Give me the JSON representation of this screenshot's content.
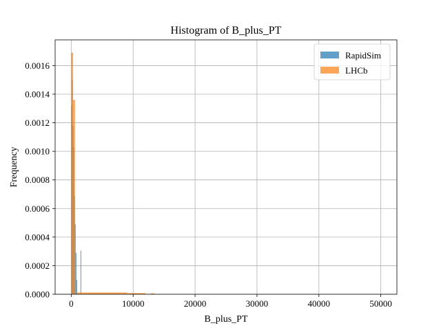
{
  "chart_data": {
    "type": "bar",
    "title": "Histogram of B_plus_PT",
    "xlabel": "B_plus_PT",
    "ylabel": "Frequency",
    "xlim": [
      -2600,
      52600
    ],
    "ylim": [
      0,
      0.00178
    ],
    "xticks": [
      0,
      10000,
      20000,
      30000,
      40000,
      50000
    ],
    "xtick_labels": [
      "0",
      "10000",
      "20000",
      "30000",
      "40000",
      "50000"
    ],
    "yticks": [
      0,
      0.0002,
      0.0004,
      0.0006,
      0.0008,
      0.001,
      0.0012,
      0.0014,
      0.0016
    ],
    "ytick_labels": [
      "0.0000",
      "0.0002",
      "0.0004",
      "0.0006",
      "0.0008",
      "0.0010",
      "0.0012",
      "0.0014",
      "0.0016"
    ],
    "grid": true,
    "legend_position": "top-right",
    "series": [
      {
        "name": "RapidSim",
        "color": "#1f77b4",
        "opacity": 0.7,
        "bins": [
          {
            "x0": 0,
            "x1": 120,
            "value": 0.00132
          },
          {
            "x0": 120,
            "x1": 240,
            "value": 0.0015
          },
          {
            "x0": 240,
            "x1": 360,
            "value": 0.00118
          },
          {
            "x0": 360,
            "x1": 480,
            "value": 0.00103
          },
          {
            "x0": 480,
            "x1": 600,
            "value": 0.00069
          },
          {
            "x0": 600,
            "x1": 720,
            "value": 0.00049
          },
          {
            "x0": 720,
            "x1": 840,
            "value": 0.00029
          },
          {
            "x0": 840,
            "x1": 960,
            "value": 0.0001
          },
          {
            "x0": 1500,
            "x1": 1620,
            "value": 0.000305
          }
        ]
      },
      {
        "name": "LHCb",
        "color": "#ff7f0e",
        "opacity": 0.7,
        "bins": [
          {
            "x0": 0,
            "x1": 300,
            "value": 0.00169
          },
          {
            "x0": 300,
            "x1": 600,
            "value": 0.00136
          },
          {
            "x0": 600,
            "x1": 900,
            "value": 0.0
          },
          {
            "x0": 900,
            "x1": 9000,
            "value": 1.2e-05
          },
          {
            "x0": 9000,
            "x1": 12000,
            "value": 8e-06
          },
          {
            "x0": 12800,
            "x1": 13400,
            "value": 6e-06
          }
        ]
      }
    ]
  }
}
